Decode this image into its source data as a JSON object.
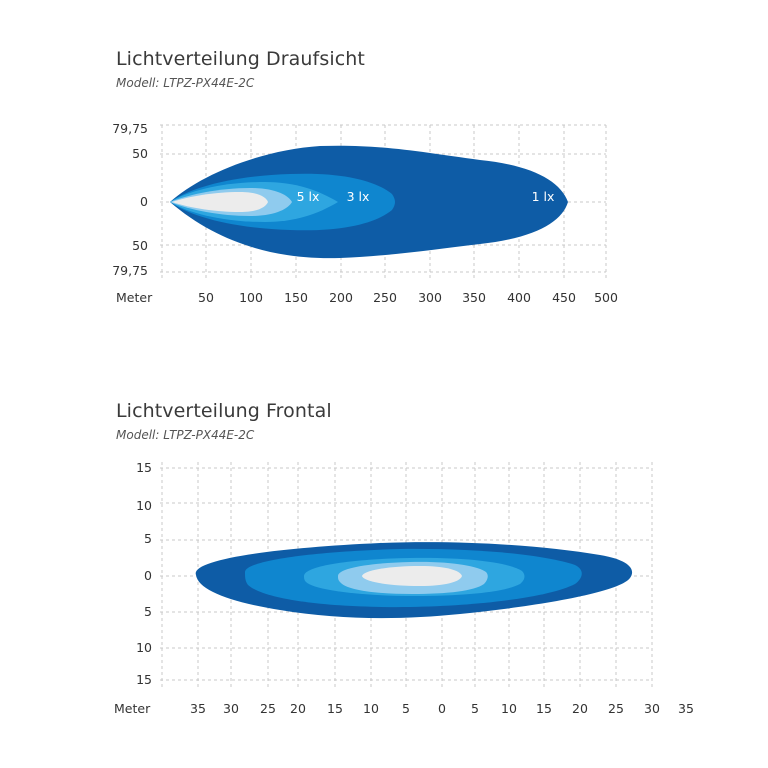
{
  "colors": {
    "zone_1_lx": "#0e5ca6",
    "zone_3_lx": "#0f86cf",
    "zone_5_lx": "#2ea6e0",
    "zone_10_lx": "#8fcbee",
    "zone_hot": "#ececec",
    "grid": "#c8c8c8",
    "text": "#333333"
  },
  "chart_data": [
    {
      "type": "area",
      "title": "Lichtverteilung Draufsicht",
      "subtitle": "Modell: LTPZ-PX44E-2C",
      "xlabel": "Meter",
      "x_ticks": [
        "50",
        "100",
        "150",
        "200",
        "250",
        "300",
        "350",
        "400",
        "450",
        "500"
      ],
      "y_ticks": [
        "79,75",
        "50",
        "0",
        "50",
        "79,75"
      ],
      "xlim": [
        0,
        500
      ],
      "ylim": [
        -79.75,
        79.75
      ],
      "grid": true,
      "isolux_zones": [
        {
          "label": "1 lx",
          "reach": 452,
          "half_width": 57
        },
        {
          "label": "3 lx",
          "reach": 250,
          "half_width": 27
        },
        {
          "label": "5 lx",
          "reach": 135,
          "half_width": 19
        },
        {
          "label": "",
          "reach": 110,
          "half_width": 13
        },
        {
          "label": "",
          "reach": 95,
          "half_width": 9
        }
      ]
    },
    {
      "type": "area",
      "title": "Lichtverteilung Frontal",
      "subtitle": "Modell: LTPZ-PX44E-2C",
      "xlabel": "Meter",
      "x_ticks": [
        "35",
        "30",
        "25",
        "20",
        "15",
        "10",
        "5",
        "0",
        "5",
        "10",
        "15",
        "20",
        "25",
        "30",
        "35"
      ],
      "y_ticks": [
        "15",
        "10",
        "5",
        "0",
        "5",
        "10",
        "15"
      ],
      "xlim": [
        -35,
        35
      ],
      "ylim": [
        -15,
        15
      ],
      "grid": true,
      "isolux_zones": [
        {
          "label": "",
          "x_range": [
            -35,
            27
          ],
          "half_height": 5.8
        },
        {
          "label": "",
          "x_range": [
            -28,
            20
          ],
          "half_height": 3.8
        },
        {
          "label": "",
          "x_range": [
            -19,
            11
          ],
          "half_height": 2.3
        },
        {
          "label": "",
          "x_range": [
            -9,
            6
          ],
          "half_height": 1.5
        },
        {
          "label": "",
          "x_range": [
            -5,
            3
          ],
          "half_height": 0.8
        }
      ]
    }
  ]
}
